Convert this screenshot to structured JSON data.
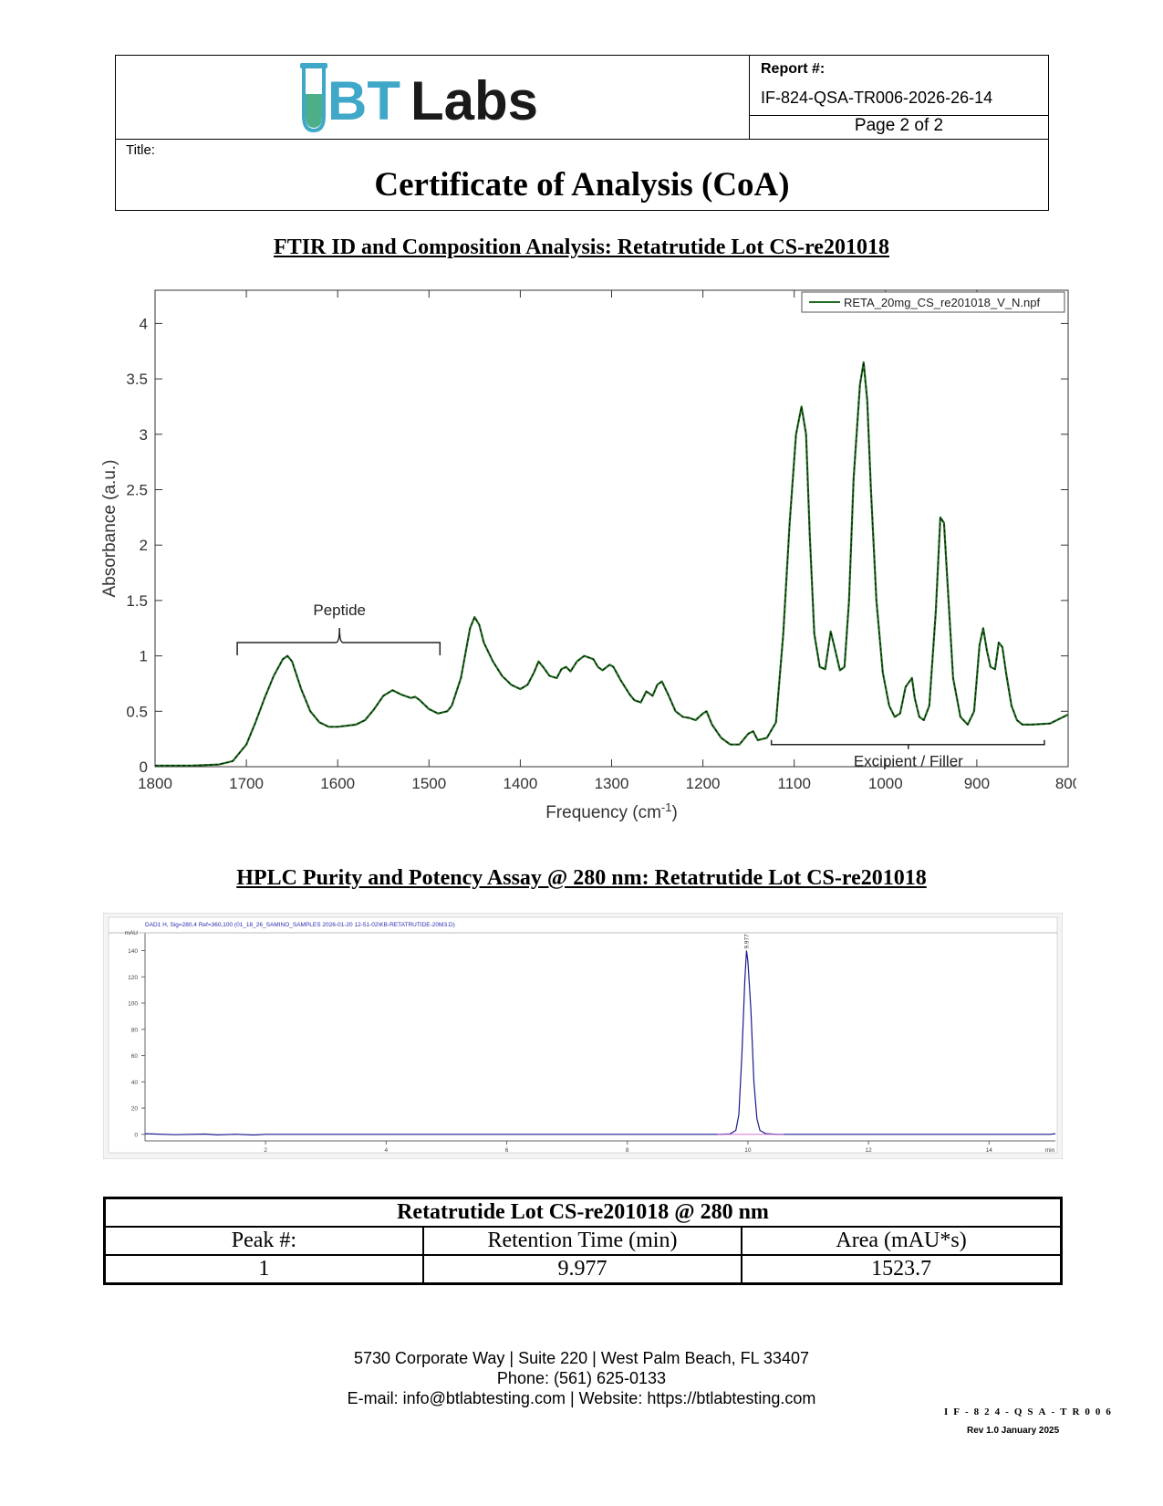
{
  "header": {
    "logo_text_a": "BT",
    "logo_text_b": "Labs",
    "report_label": "Report #:",
    "report_number": "IF-824-QSA-TR006-2026-26-14",
    "page_indicator": "Page 2 of 2",
    "title_label": "Title:",
    "document_title": "Certificate of Analysis (CoA)",
    "colors": {
      "logo_blue": "#3fa7c7",
      "logo_green": "#4caf8a",
      "logo_dark": "#1a1a1a"
    }
  },
  "ftir": {
    "section_title": "FTIR ID and Composition Analysis: Retatrutide Lot CS-re201018",
    "annotation_peptide": "Peptide",
    "annotation_excipient": "Excipient / Filler"
  },
  "hplc": {
    "section_title": "HPLC Purity and Potency Assay @ 280 nm: Retatrutide Lot CS-re201018"
  },
  "chart_data": [
    {
      "type": "line",
      "xlabel": "Frequency (cm-1)",
      "ylabel": "Absorbance (a.u.)",
      "xlim": [
        1800,
        800
      ],
      "ylim": [
        0,
        4.3
      ],
      "x_reversed": true,
      "xticks": [
        1800,
        1700,
        1600,
        1500,
        1400,
        1300,
        1200,
        1100,
        1000,
        900,
        800
      ],
      "yticks": [
        0,
        0.5,
        1,
        1.5,
        2,
        2.5,
        3,
        3.5,
        4
      ],
      "legend_placement": "top-right",
      "series": [
        {
          "name": "RETA_20mg_CS_re201018_V_N.npf",
          "color": "#1f6b1f",
          "x": [
            1800,
            1760,
            1730,
            1715,
            1700,
            1690,
            1680,
            1670,
            1660,
            1655,
            1650,
            1640,
            1630,
            1620,
            1610,
            1600,
            1580,
            1570,
            1560,
            1550,
            1540,
            1530,
            1520,
            1515,
            1510,
            1500,
            1490,
            1480,
            1475,
            1465,
            1455,
            1450,
            1445,
            1440,
            1430,
            1420,
            1410,
            1400,
            1392,
            1385,
            1380,
            1375,
            1368,
            1360,
            1355,
            1350,
            1345,
            1338,
            1330,
            1320,
            1315,
            1310,
            1302,
            1298,
            1290,
            1280,
            1275,
            1268,
            1262,
            1255,
            1250,
            1245,
            1238,
            1230,
            1222,
            1215,
            1208,
            1200,
            1196,
            1190,
            1180,
            1170,
            1160,
            1150,
            1145,
            1140,
            1130,
            1120,
            1112,
            1105,
            1098,
            1092,
            1087,
            1083,
            1078,
            1072,
            1066,
            1060,
            1055,
            1050,
            1045,
            1040,
            1035,
            1028,
            1024,
            1020,
            1016,
            1010,
            1003,
            996,
            990,
            984,
            978,
            971,
            968,
            963,
            958,
            952,
            945,
            940,
            936,
            931,
            926,
            918,
            910,
            903,
            897,
            893,
            889,
            885,
            880,
            876,
            872,
            868,
            862,
            856,
            850,
            840,
            820,
            800
          ],
          "y": [
            0.01,
            0.01,
            0.02,
            0.05,
            0.2,
            0.4,
            0.62,
            0.82,
            0.97,
            1.0,
            0.95,
            0.7,
            0.5,
            0.4,
            0.36,
            0.36,
            0.38,
            0.42,
            0.52,
            0.64,
            0.69,
            0.65,
            0.62,
            0.63,
            0.6,
            0.52,
            0.48,
            0.5,
            0.55,
            0.8,
            1.25,
            1.35,
            1.28,
            1.12,
            0.95,
            0.82,
            0.74,
            0.7,
            0.74,
            0.85,
            0.95,
            0.9,
            0.82,
            0.8,
            0.88,
            0.9,
            0.86,
            0.95,
            1.0,
            0.97,
            0.9,
            0.87,
            0.92,
            0.9,
            0.78,
            0.65,
            0.6,
            0.58,
            0.68,
            0.64,
            0.74,
            0.77,
            0.65,
            0.5,
            0.45,
            0.44,
            0.42,
            0.48,
            0.5,
            0.38,
            0.26,
            0.2,
            0.2,
            0.3,
            0.32,
            0.24,
            0.26,
            0.4,
            1.2,
            2.2,
            3.0,
            3.25,
            3.0,
            2.1,
            1.2,
            0.9,
            0.88,
            1.22,
            1.05,
            0.87,
            0.9,
            1.5,
            2.6,
            3.45,
            3.65,
            3.3,
            2.5,
            1.5,
            0.85,
            0.55,
            0.45,
            0.48,
            0.72,
            0.8,
            0.62,
            0.45,
            0.42,
            0.55,
            1.4,
            2.25,
            2.2,
            1.5,
            0.8,
            0.45,
            0.38,
            0.5,
            1.1,
            1.25,
            1.05,
            0.9,
            0.88,
            1.12,
            1.08,
            0.85,
            0.55,
            0.42,
            0.38,
            0.38,
            0.39,
            0.47
          ]
        }
      ]
    },
    {
      "type": "line",
      "header_text": "DAD1 H, Sig=280,4 Ref=360,100 (01_18_26_SAMINO_SAMPLES 2026-01-20 12-51-02\\KB-RETATRUTIDE-20M3.D)",
      "ylabel": "mAU",
      "xlabel": "min",
      "xlim": [
        0,
        15.1
      ],
      "ylim": [
        -5,
        148
      ],
      "xticks": [
        2,
        4,
        6,
        8,
        10,
        12,
        14
      ],
      "yticks": [
        0,
        20,
        40,
        60,
        80,
        100,
        120,
        140
      ],
      "peak_label": "9.977",
      "series": [
        {
          "name": "",
          "color": "#1a1a8c",
          "x": [
            0,
            0.5,
            1,
            1.2,
            1.5,
            1.8,
            2,
            3,
            4,
            5,
            6,
            7,
            8,
            9,
            9.5,
            9.7,
            9.8,
            9.85,
            9.9,
            9.95,
            9.977,
            10.0,
            10.05,
            10.1,
            10.15,
            10.2,
            10.3,
            10.5,
            11,
            12,
            13,
            14,
            15,
            15.1
          ],
          "y": [
            0.5,
            -0.3,
            0.2,
            -0.4,
            0.1,
            -0.5,
            0,
            0,
            0,
            0,
            0,
            0,
            0,
            0,
            0,
            0.3,
            3,
            15,
            60,
            118,
            140,
            132,
            95,
            40,
            12,
            3,
            0.5,
            0,
            0,
            0,
            0,
            0,
            0,
            0.5
          ]
        }
      ]
    }
  ],
  "results_table": {
    "caption": "Retatrutide Lot CS-re201018 @ 280 nm",
    "headers": [
      "Peak #:",
      "Retention Time (min)",
      "Area (mAU*s)"
    ],
    "rows": [
      [
        "1",
        "9.977",
        "1523.7"
      ]
    ]
  },
  "footer": {
    "address": "5730 Corporate Way | Suite 220 | West Palm Beach, FL 33407",
    "phone": "Phone: (561) 625-0133",
    "contact": "E-mail: info@btlabtesting.com | Website: https://btlabtesting.com",
    "form_code": "IF-824-QSA-TR006",
    "revision": "Rev 1.0 January 2025"
  }
}
